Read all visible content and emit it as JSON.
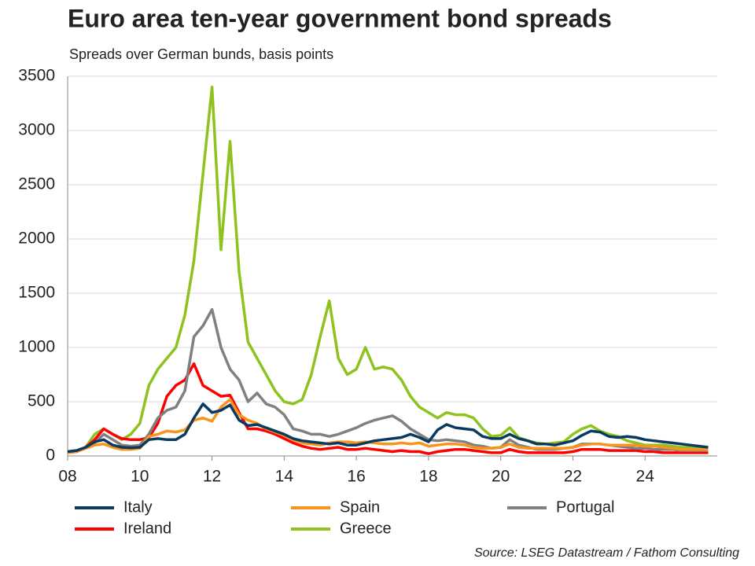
{
  "chart_data": {
    "type": "line",
    "title": "Euro area  ten-year government bond spreads",
    "subtitle": "Spreads over German bunds, basis points",
    "source": "Source: LSEG Datastream / Fathom Consulting",
    "xlim": [
      2008,
      2026
    ],
    "ylim": [
      0,
      3500
    ],
    "xticks": [
      {
        "value": 2008,
        "label": "08"
      },
      {
        "value": 2010,
        "label": "10"
      },
      {
        "value": 2012,
        "label": "12"
      },
      {
        "value": 2014,
        "label": "14"
      },
      {
        "value": 2016,
        "label": "16"
      },
      {
        "value": 2018,
        "label": "18"
      },
      {
        "value": 2020,
        "label": "20"
      },
      {
        "value": 2022,
        "label": "22"
      },
      {
        "value": 2024,
        "label": "24"
      }
    ],
    "yticks": [
      0,
      500,
      1000,
      1500,
      2000,
      2500,
      3000,
      3500
    ],
    "grid": true,
    "x": [
      2008,
      2008.25,
      2008.5,
      2008.75,
      2009,
      2009.25,
      2009.5,
      2009.75,
      2010,
      2010.25,
      2010.5,
      2010.75,
      2011,
      2011.25,
      2011.5,
      2011.75,
      2012,
      2012.25,
      2012.5,
      2012.75,
      2013,
      2013.25,
      2013.5,
      2013.75,
      2014,
      2014.25,
      2014.5,
      2014.75,
      2015,
      2015.25,
      2015.5,
      2015.75,
      2016,
      2016.25,
      2016.5,
      2016.75,
      2017,
      2017.25,
      2017.5,
      2017.75,
      2018,
      2018.25,
      2018.5,
      2018.75,
      2019,
      2019.25,
      2019.5,
      2019.75,
      2020,
      2020.25,
      2020.5,
      2020.75,
      2021,
      2021.25,
      2021.5,
      2021.75,
      2022,
      2022.25,
      2022.5,
      2022.75,
      2023,
      2023.25,
      2023.5,
      2023.75,
      2024,
      2024.25,
      2024.5,
      2024.75,
      2025,
      2025.25,
      2025.5,
      2025.75
    ],
    "series": [
      {
        "name": "Italy",
        "color": "#0a3a5f",
        "values": [
          40,
          50,
          80,
          130,
          150,
          100,
          80,
          75,
          80,
          150,
          160,
          150,
          150,
          200,
          350,
          480,
          400,
          420,
          470,
          330,
          280,
          290,
          260,
          230,
          200,
          160,
          140,
          130,
          120,
          110,
          120,
          100,
          100,
          120,
          140,
          150,
          160,
          170,
          200,
          170,
          130,
          240,
          290,
          260,
          250,
          240,
          180,
          160,
          160,
          200,
          160,
          140,
          110,
          110,
          100,
          120,
          140,
          190,
          230,
          220,
          180,
          170,
          180,
          170,
          150,
          140,
          130,
          120,
          110,
          100,
          90,
          80
        ]
      },
      {
        "name": "Spain",
        "color": "#f7941d",
        "values": [
          30,
          40,
          70,
          100,
          110,
          80,
          60,
          60,
          70,
          180,
          200,
          230,
          220,
          240,
          330,
          350,
          320,
          450,
          520,
          380,
          330,
          300,
          250,
          220,
          190,
          150,
          120,
          110,
          100,
          120,
          130,
          130,
          120,
          130,
          120,
          110,
          110,
          120,
          110,
          120,
          90,
          100,
          110,
          110,
          100,
          80,
          70,
          70,
          80,
          110,
          80,
          70,
          70,
          70,
          70,
          70,
          80,
          100,
          110,
          110,
          100,
          100,
          100,
          100,
          90,
          90,
          80,
          70,
          60,
          60,
          60,
          60
        ]
      },
      {
        "name": "Portugal",
        "color": "#808080",
        "values": [
          40,
          50,
          80,
          120,
          200,
          150,
          100,
          90,
          100,
          200,
          350,
          420,
          450,
          600,
          1100,
          1200,
          1350,
          1000,
          800,
          700,
          500,
          580,
          480,
          450,
          380,
          250,
          230,
          200,
          200,
          180,
          200,
          230,
          260,
          300,
          330,
          350,
          370,
          320,
          250,
          200,
          150,
          140,
          150,
          140,
          130,
          100,
          90,
          70,
          80,
          150,
          100,
          80,
          60,
          60,
          60,
          70,
          80,
          110,
          110,
          110,
          100,
          90,
          80,
          70,
          70,
          60,
          60,
          60,
          50,
          50,
          50,
          50
        ]
      },
      {
        "name": "Ireland",
        "color": "#ff0000",
        "values": [
          30,
          40,
          80,
          150,
          250,
          200,
          160,
          150,
          150,
          170,
          300,
          550,
          650,
          700,
          850,
          650,
          600,
          550,
          560,
          400,
          250,
          250,
          230,
          200,
          160,
          120,
          90,
          70,
          60,
          70,
          80,
          60,
          60,
          70,
          60,
          50,
          40,
          50,
          40,
          40,
          20,
          40,
          50,
          60,
          60,
          50,
          40,
          30,
          30,
          60,
          40,
          30,
          30,
          30,
          30,
          30,
          40,
          60,
          60,
          60,
          50,
          50,
          50,
          50,
          40,
          40,
          30,
          30,
          30,
          30,
          30,
          30
        ]
      },
      {
        "name": "Greece",
        "color": "#8dc21f",
        "values": [
          30,
          50,
          80,
          200,
          250,
          200,
          150,
          200,
          300,
          650,
          800,
          900,
          1000,
          1300,
          1800,
          2600,
          3400,
          1900,
          2900,
          1700,
          1050,
          900,
          750,
          600,
          500,
          480,
          520,
          750,
          1100,
          1430,
          900,
          750,
          800,
          1000,
          800,
          820,
          800,
          700,
          550,
          450,
          400,
          350,
          400,
          380,
          380,
          350,
          250,
          180,
          190,
          260,
          170,
          140,
          120,
          110,
          120,
          130,
          200,
          250,
          280,
          230,
          200,
          180,
          140,
          120,
          100,
          100,
          100,
          90,
          80,
          80,
          70,
          70
        ]
      }
    ]
  }
}
